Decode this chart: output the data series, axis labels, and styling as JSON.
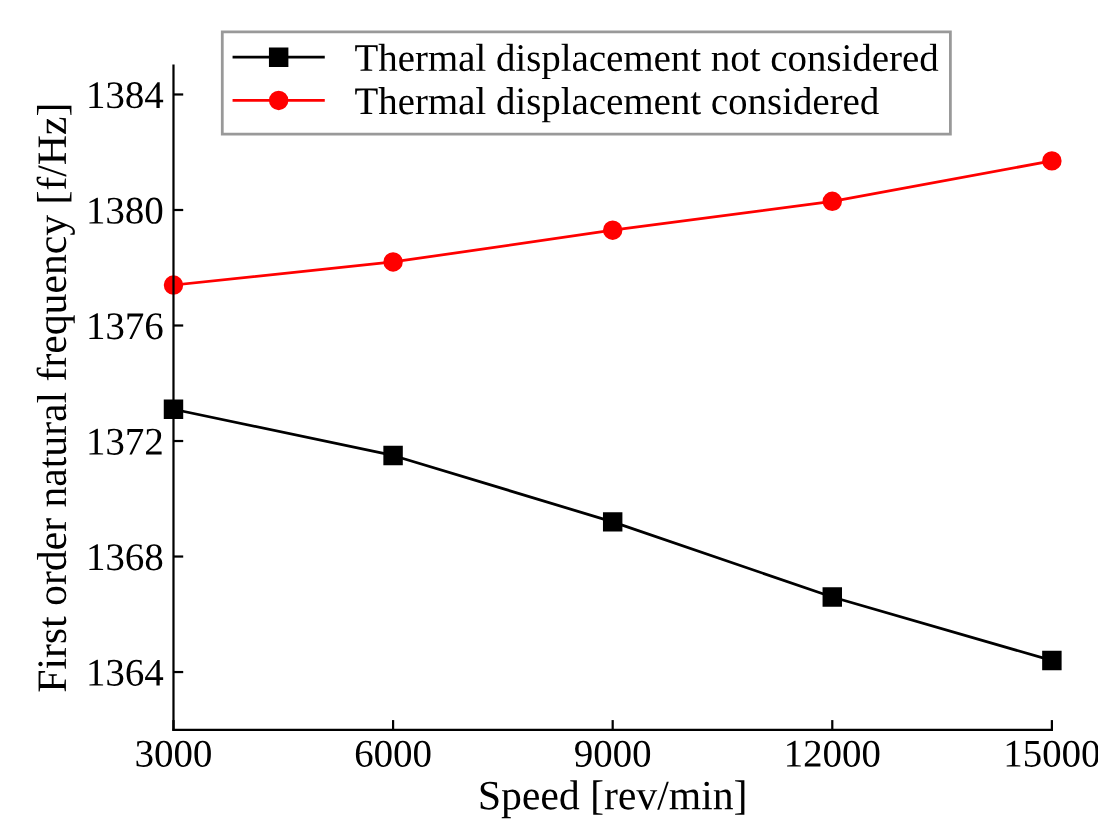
{
  "chart_data": {
    "type": "line",
    "xlabel": "Speed [rev/min]",
    "ylabel": "First order natural frequency [f/Hz]",
    "x": [
      3000,
      6000,
      9000,
      12000,
      15000
    ],
    "series": [
      {
        "name": "Thermal displacement not considered",
        "color": "#000000",
        "marker": "square",
        "values": [
          1373.1,
          1371.5,
          1369.2,
          1366.6,
          1364.4
        ]
      },
      {
        "name": "Thermal displacement considered",
        "color": "#ff0000",
        "marker": "circle",
        "values": [
          1377.4,
          1378.2,
          1379.3,
          1380.3,
          1381.7
        ]
      }
    ],
    "xlim": [
      3000,
      15000
    ],
    "xticks": [
      3000,
      6000,
      9000,
      12000,
      15000
    ],
    "ylim": [
      1362,
      1385
    ],
    "yticks": [
      1364,
      1368,
      1372,
      1376,
      1380,
      1384
    ],
    "grid": false,
    "legend": "top"
  }
}
